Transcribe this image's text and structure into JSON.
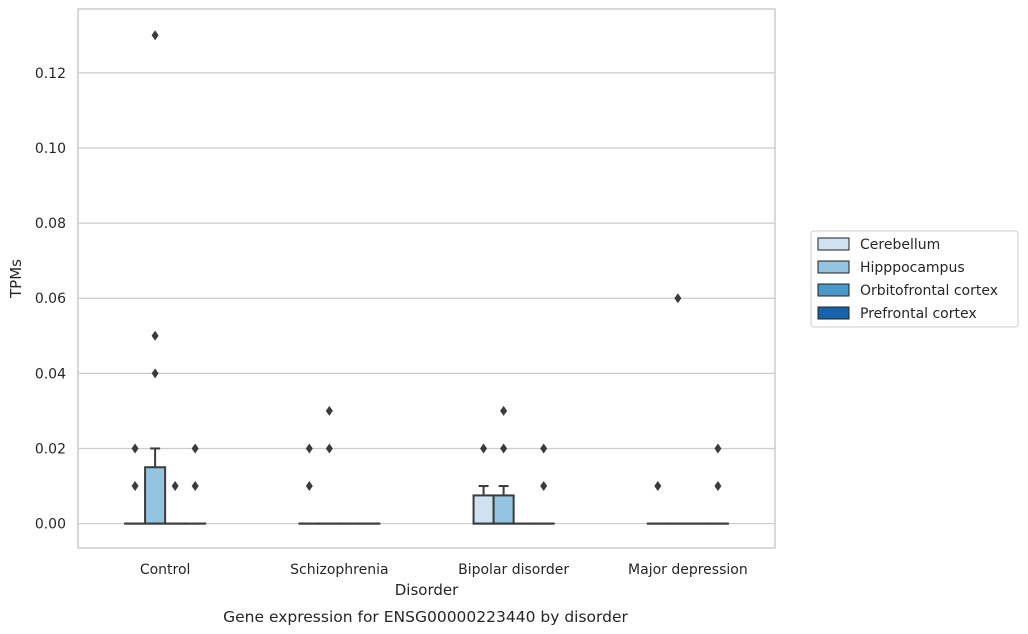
{
  "chart_data": {
    "type": "box",
    "xlabel": "Disorder",
    "ylabel": "TPMs",
    "caption": "Gene expression for ENSG00000223440 by disorder",
    "categories": [
      "Control",
      "Schizophrenia",
      "Bipolar disorder",
      "Major depression"
    ],
    "ylim": [
      -0.0065,
      0.137
    ],
    "yticks": [
      0.0,
      0.02,
      0.04,
      0.06,
      0.08,
      0.1,
      0.12
    ],
    "ytick_labels": [
      "0.00",
      "0.02",
      "0.04",
      "0.06",
      "0.08",
      "0.10",
      "0.12"
    ],
    "grid": "horizontal",
    "legend_position": "right",
    "series": [
      {
        "name": "Cerebellum",
        "color": "#d0e1f2",
        "boxes": [
          {
            "q1": 0,
            "median": 0,
            "q3": 0,
            "whisker_low": 0,
            "whisker_high": 0,
            "outliers": [
              0.01,
              0.02
            ]
          },
          {
            "q1": 0,
            "median": 0,
            "q3": 0,
            "whisker_low": 0,
            "whisker_high": 0,
            "outliers": [
              0.01,
              0.02
            ]
          },
          {
            "q1": 0,
            "median": 0,
            "q3": 0.0075,
            "whisker_low": 0,
            "whisker_high": 0.01,
            "outliers": [
              0.02
            ]
          },
          {
            "q1": 0,
            "median": 0,
            "q3": 0,
            "whisker_low": 0,
            "whisker_high": 0,
            "outliers": [
              0.01
            ]
          }
        ]
      },
      {
        "name": "Hipppocampus",
        "color": "#94c4df",
        "boxes": [
          {
            "q1": 0,
            "median": 0,
            "q3": 0.015,
            "whisker_low": 0,
            "whisker_high": 0.02,
            "outliers": [
              0.04,
              0.05,
              0.13
            ]
          },
          {
            "q1": 0,
            "median": 0,
            "q3": 0,
            "whisker_low": 0,
            "whisker_high": 0,
            "outliers": [
              0.02,
              0.03
            ]
          },
          {
            "q1": 0,
            "median": 0,
            "q3": 0.0075,
            "whisker_low": 0,
            "whisker_high": 0.01,
            "outliers": [
              0.02,
              0.03
            ]
          },
          {
            "q1": 0,
            "median": 0,
            "q3": 0,
            "whisker_low": 0,
            "whisker_high": 0,
            "outliers": [
              0.06
            ]
          }
        ]
      },
      {
        "name": "Orbitofrontal cortex",
        "color": "#4a98c9",
        "boxes": [
          {
            "q1": 0,
            "median": 0,
            "q3": 0,
            "whisker_low": 0,
            "whisker_high": 0,
            "outliers": [
              0.01
            ]
          },
          {
            "q1": 0,
            "median": 0,
            "q3": 0,
            "whisker_low": 0,
            "whisker_high": 0,
            "outliers": []
          },
          {
            "q1": 0,
            "median": 0,
            "q3": 0,
            "whisker_low": 0,
            "whisker_high": 0,
            "outliers": []
          },
          {
            "q1": 0,
            "median": 0,
            "q3": 0,
            "whisker_low": 0,
            "whisker_high": 0,
            "outliers": []
          }
        ]
      },
      {
        "name": "Prefrontal cortex",
        "color": "#1764ab",
        "boxes": [
          {
            "q1": 0,
            "median": 0,
            "q3": 0,
            "whisker_low": 0,
            "whisker_high": 0,
            "outliers": [
              0.01,
              0.02
            ]
          },
          {
            "q1": 0,
            "median": 0,
            "q3": 0,
            "whisker_low": 0,
            "whisker_high": 0,
            "outliers": []
          },
          {
            "q1": 0,
            "median": 0,
            "q3": 0,
            "whisker_low": 0,
            "whisker_high": 0,
            "outliers": [
              0.01,
              0.02
            ]
          },
          {
            "q1": 0,
            "median": 0,
            "q3": 0,
            "whisker_low": 0,
            "whisker_high": 0,
            "outliers": [
              0.01,
              0.02
            ]
          }
        ]
      }
    ]
  }
}
